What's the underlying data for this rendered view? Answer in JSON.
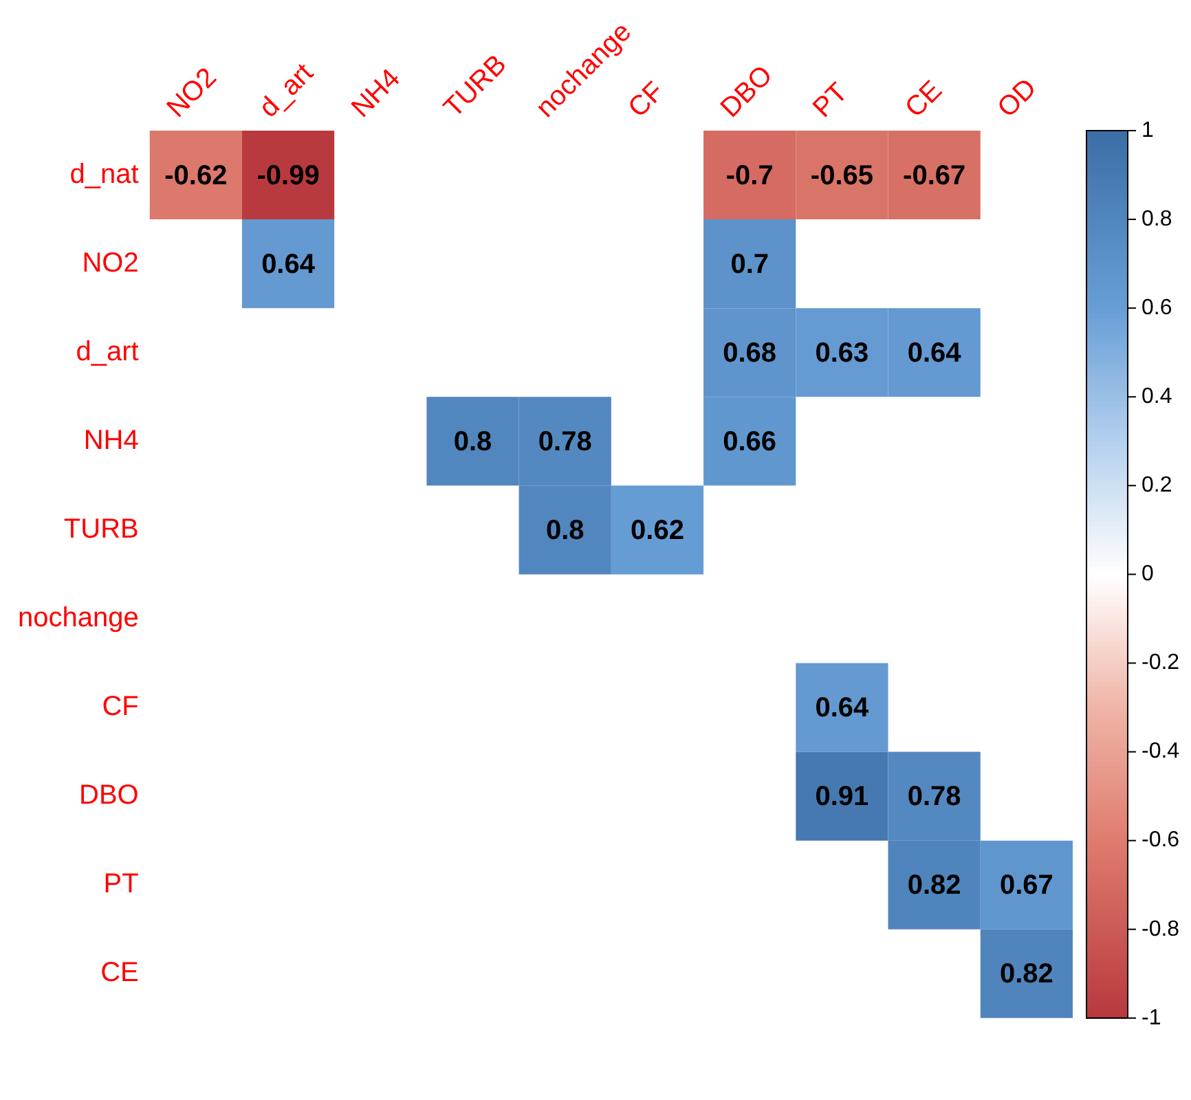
{
  "chart_data": {
    "type": "heatmap",
    "categories": [
      "NO2",
      "d_art",
      "NH4",
      "TURB",
      "nochange",
      "CF",
      "DBO",
      "PT",
      "CE",
      "OD"
    ],
    "y_categories": [
      "d_nat",
      "NO2",
      "d_art",
      "NH4",
      "TURB",
      "nochange",
      "CF",
      "DBO",
      "PT",
      "CE"
    ],
    "cells": [
      [
        -0.62,
        -0.99,
        null,
        null,
        null,
        null,
        -0.7,
        -0.65,
        -0.67,
        null
      ],
      [
        null,
        0.64,
        null,
        null,
        null,
        null,
        0.7,
        null,
        null,
        null
      ],
      [
        null,
        null,
        null,
        null,
        null,
        null,
        0.68,
        0.63,
        0.64,
        null
      ],
      [
        null,
        null,
        null,
        0.8,
        0.78,
        null,
        0.66,
        null,
        null,
        null
      ],
      [
        null,
        null,
        null,
        null,
        0.8,
        0.62,
        null,
        null,
        null,
        null
      ],
      [
        null,
        null,
        null,
        null,
        null,
        null,
        null,
        null,
        null,
        null
      ],
      [
        null,
        null,
        null,
        null,
        null,
        null,
        null,
        0.64,
        null,
        null
      ],
      [
        null,
        null,
        null,
        null,
        null,
        null,
        null,
        0.91,
        0.78,
        null
      ],
      [
        null,
        null,
        null,
        null,
        null,
        null,
        null,
        null,
        0.82,
        0.67
      ],
      [
        null,
        null,
        null,
        null,
        null,
        null,
        null,
        null,
        null,
        0.82
      ]
    ],
    "data_labels": true,
    "clim": [
      -1,
      1
    ],
    "cticks": [
      -1,
      -0.8,
      -0.6,
      -0.4,
      -0.2,
      0,
      0.2,
      0.4,
      0.6,
      0.8,
      1
    ]
  }
}
